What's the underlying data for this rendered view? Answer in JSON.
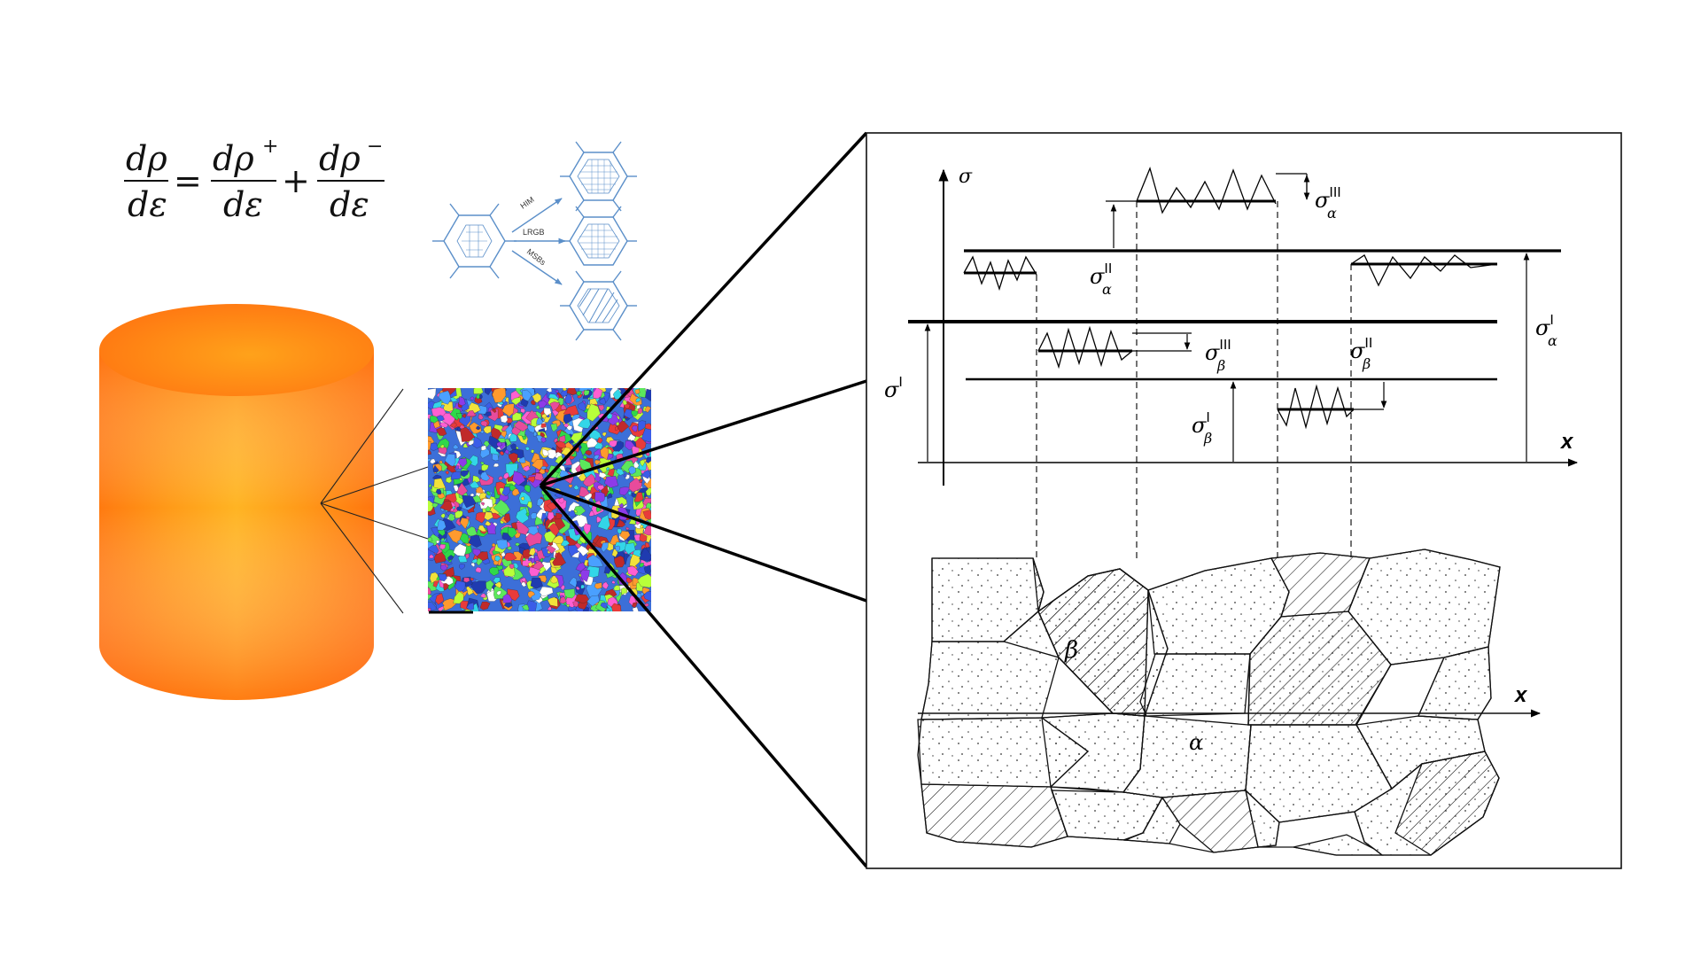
{
  "equation": {
    "lhs_num": "dρ",
    "lhs_den": "dε",
    "equals": "=",
    "term1_num": "dρ",
    "term1_sup": "+",
    "term1_den": "dε",
    "plus": "+",
    "term2_num": "dρ",
    "term2_sup": "−",
    "term2_den": "dε"
  },
  "mechanisms": {
    "labels": [
      "HIM",
      "LRGB",
      "MSBs"
    ]
  },
  "stress_plot": {
    "y_axis_label": "σ",
    "x_axis_label": "x",
    "sigma_symbol": "σ",
    "labels": [
      {
        "id": "sigma-III-alpha",
        "sup": "III",
        "sub": "α"
      },
      {
        "id": "sigma-II-alpha",
        "sup": "II",
        "sub": "α"
      },
      {
        "id": "sigma-I-alpha",
        "sup": "I",
        "sub": "α"
      },
      {
        "id": "sigma-I",
        "sup": "I",
        "sub": ""
      },
      {
        "id": "sigma-III-beta",
        "sup": "III",
        "sub": "β"
      },
      {
        "id": "sigma-II-beta",
        "sup": "II",
        "sub": "β"
      },
      {
        "id": "sigma-I-beta",
        "sup": "I",
        "sub": "β"
      }
    ]
  },
  "microstructure": {
    "x_axis_label": "x",
    "phase_beta": "β",
    "phase_alpha": "α"
  },
  "colors": {
    "cylinder_core": "#ffb21e",
    "cylinder_edge": "#ff6a0a",
    "mechanism_blue": "#5b8fc9",
    "line": "#000000"
  }
}
